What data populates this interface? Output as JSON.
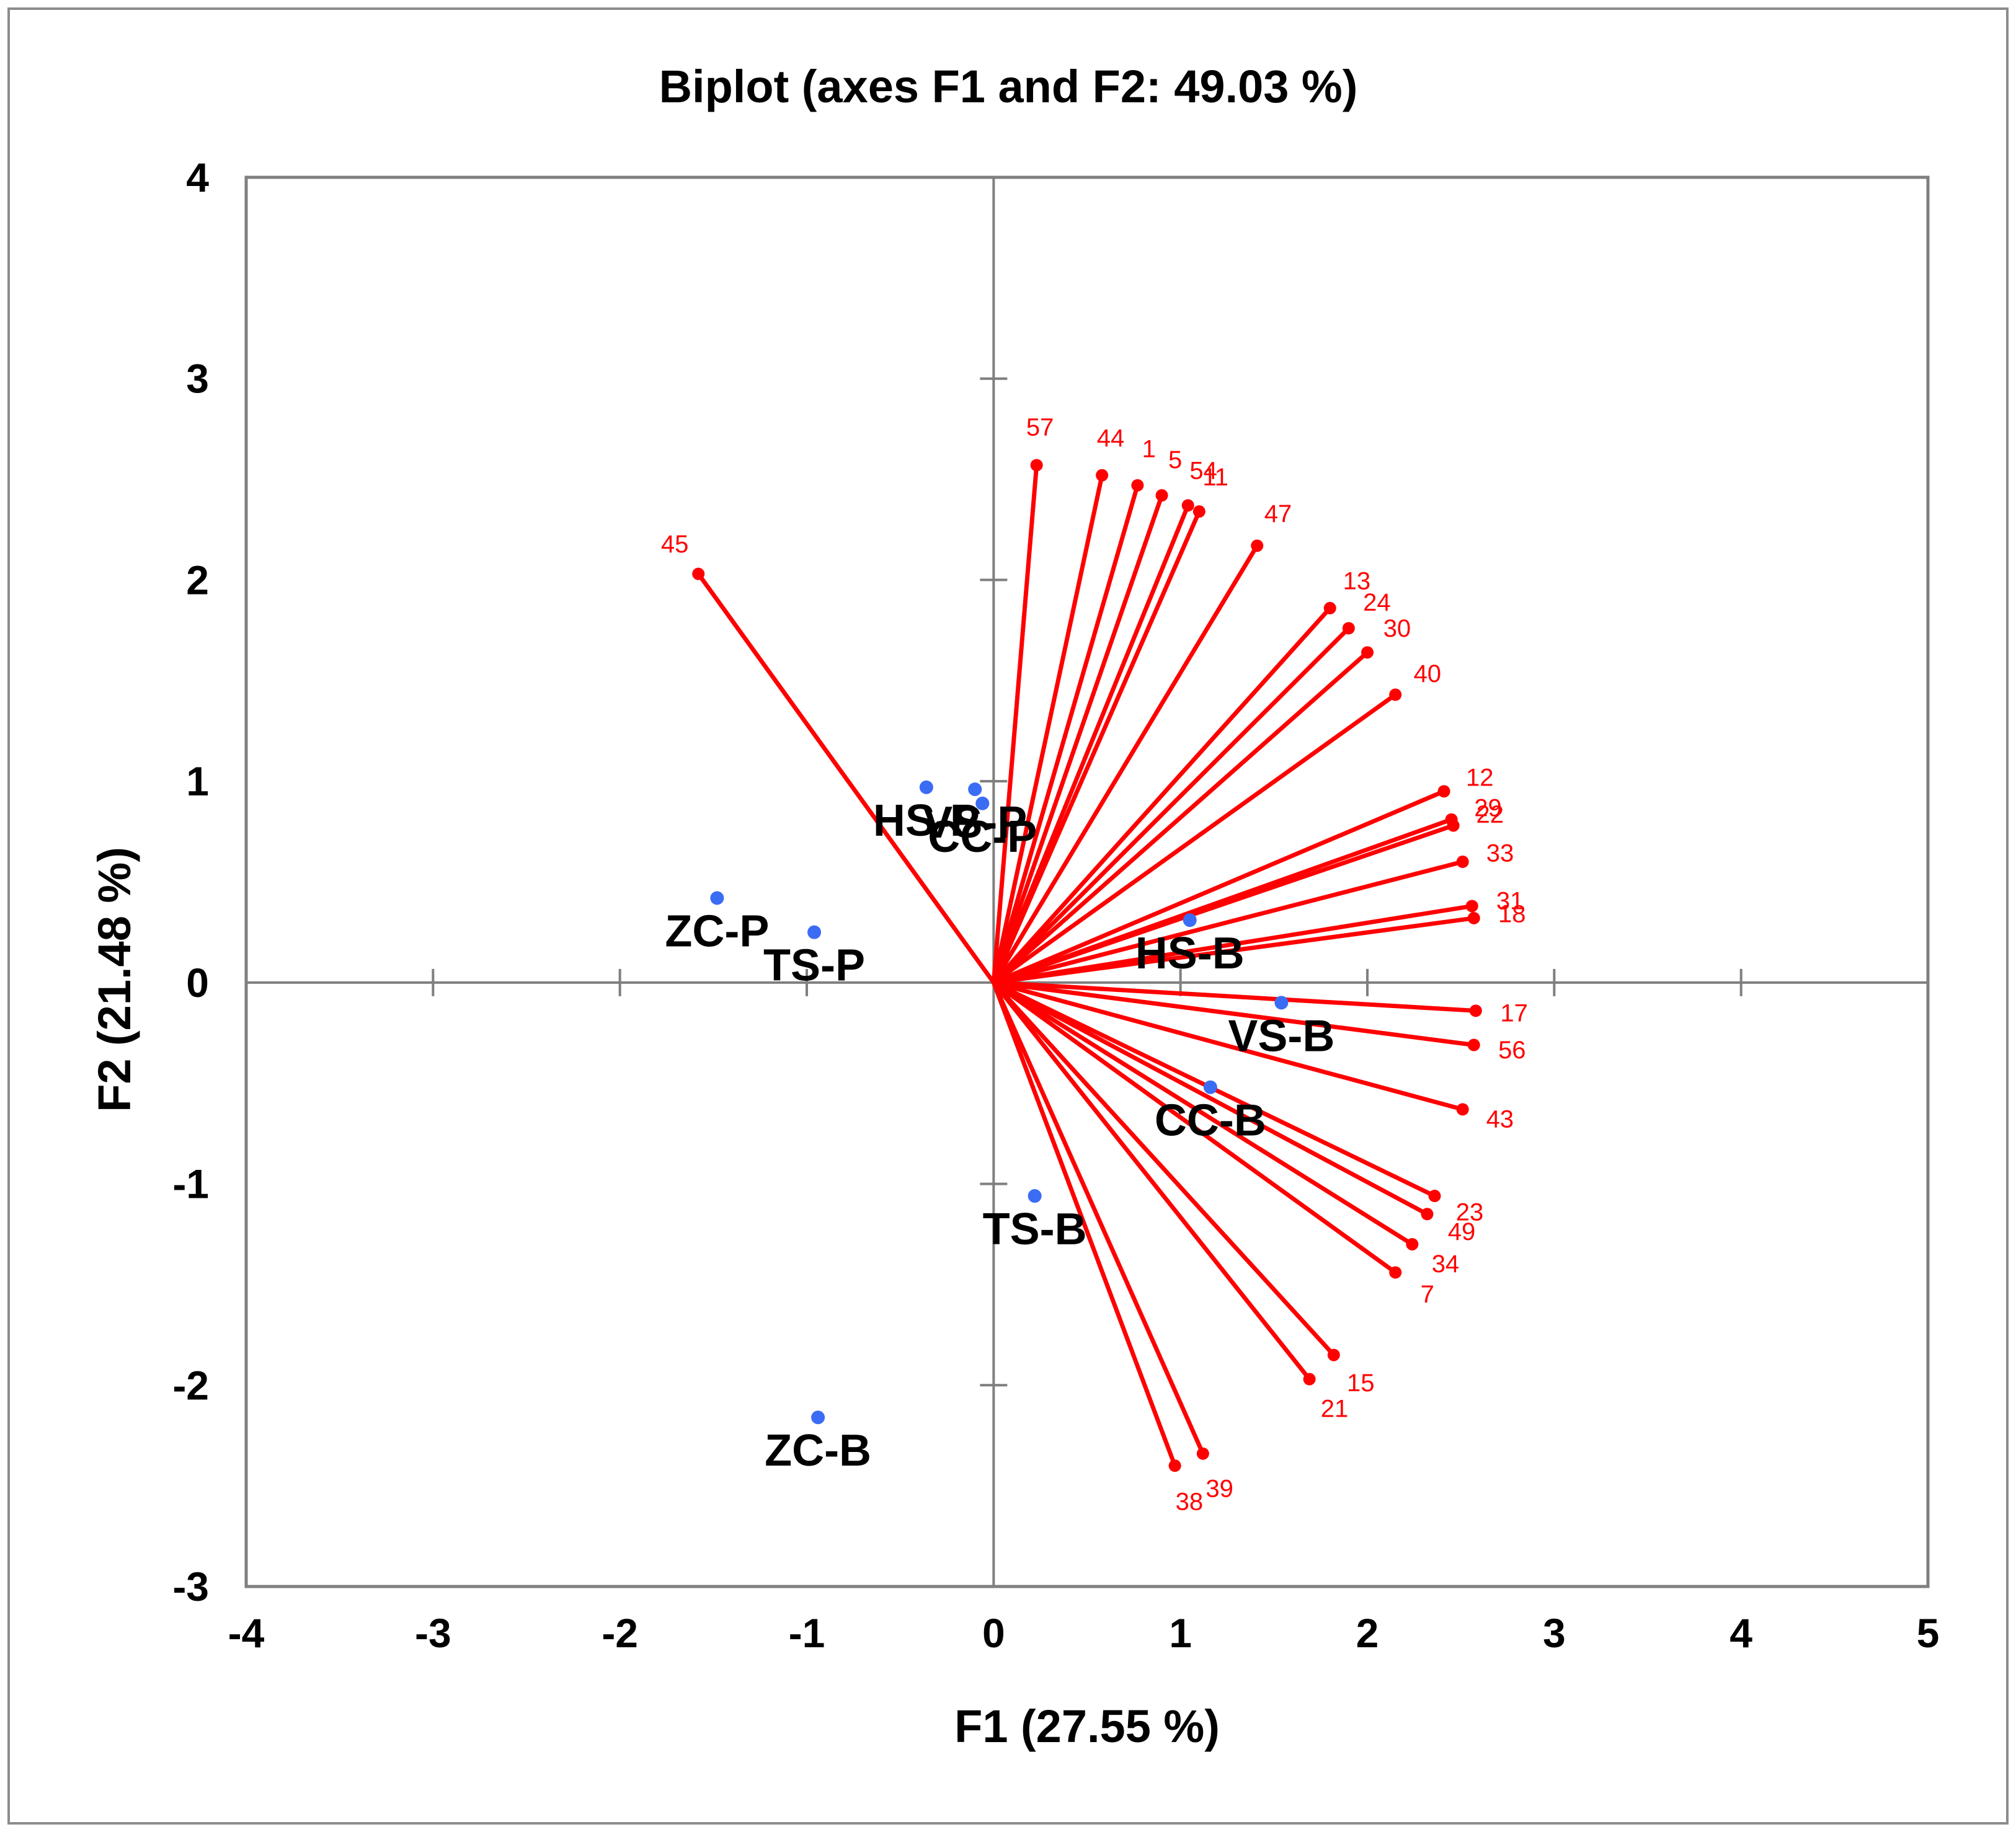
{
  "chart_data": {
    "type": "scatter",
    "title": "Biplot (axes F1 and F2: 49.03 %)",
    "xlabel": "F1 (27.55 %)",
    "ylabel": "F2 (21.48 %)",
    "xlim": [
      -4,
      5
    ],
    "ylim": [
      -3,
      4
    ],
    "x_ticks": [
      "-4",
      "-3",
      "-2",
      "-1",
      "0",
      "1",
      "2",
      "3",
      "4",
      "5"
    ],
    "y_ticks": [
      "-3",
      "-2",
      "-1",
      "0",
      "1",
      "2",
      "3",
      "4"
    ],
    "grid": false,
    "colors": {
      "variables": "#ff0000",
      "observations": "#3a6cf4",
      "axes": "#7f7f7f"
    },
    "variables": [
      {
        "label": "57",
        "x": 0.23,
        "y": 2.57
      },
      {
        "label": "44",
        "x": 0.58,
        "y": 2.52
      },
      {
        "label": "1",
        "x": 0.77,
        "y": 2.47
      },
      {
        "label": "5",
        "x": 0.9,
        "y": 2.42
      },
      {
        "label": "54",
        "x": 1.04,
        "y": 2.37
      },
      {
        "label": "11",
        "x": 1.1,
        "y": 2.34
      },
      {
        "label": "47",
        "x": 1.41,
        "y": 2.17
      },
      {
        "label": "13",
        "x": 1.8,
        "y": 1.86
      },
      {
        "label": "24",
        "x": 1.9,
        "y": 1.76
      },
      {
        "label": "30",
        "x": 2.0,
        "y": 1.64
      },
      {
        "label": "40",
        "x": 2.15,
        "y": 1.43
      },
      {
        "label": "12",
        "x": 2.41,
        "y": 0.95
      },
      {
        "label": "29",
        "x": 2.45,
        "y": 0.81
      },
      {
        "label": "22",
        "x": 2.46,
        "y": 0.78
      },
      {
        "label": "33",
        "x": 2.51,
        "y": 0.6
      },
      {
        "label": "31",
        "x": 2.56,
        "y": 0.38
      },
      {
        "label": "18",
        "x": 2.57,
        "y": 0.32
      },
      {
        "label": "17",
        "x": 2.58,
        "y": -0.14
      },
      {
        "label": "56",
        "x": 2.57,
        "y": -0.31
      },
      {
        "label": "43",
        "x": 2.51,
        "y": -0.63
      },
      {
        "label": "23",
        "x": 2.36,
        "y": -1.06
      },
      {
        "label": "49",
        "x": 2.32,
        "y": -1.15
      },
      {
        "label": "34",
        "x": 2.24,
        "y": -1.3
      },
      {
        "label": "7",
        "x": 2.15,
        "y": -1.44
      },
      {
        "label": "15",
        "x": 1.82,
        "y": -1.85
      },
      {
        "label": "21",
        "x": 1.69,
        "y": -1.97
      },
      {
        "label": "39",
        "x": 1.12,
        "y": -2.34
      },
      {
        "label": "38",
        "x": 0.97,
        "y": -2.4
      },
      {
        "label": "45",
        "x": -1.58,
        "y": 2.03
      }
    ],
    "observations": [
      {
        "label": "HS-P",
        "x": -0.36,
        "y": 0.97
      },
      {
        "label": "VS-P",
        "x": -0.1,
        "y": 0.96
      },
      {
        "label": "CC-P",
        "x": -0.06,
        "y": 0.89
      },
      {
        "label": "ZC-P",
        "x": -1.48,
        "y": 0.42
      },
      {
        "label": "TS-P",
        "x": -0.96,
        "y": 0.25
      },
      {
        "label": "HS-B",
        "x": 1.05,
        "y": 0.31
      },
      {
        "label": "VS-B",
        "x": 1.54,
        "y": -0.1
      },
      {
        "label": "CC-B",
        "x": 1.16,
        "y": -0.52
      },
      {
        "label": "TS-B",
        "x": 0.22,
        "y": -1.06
      },
      {
        "label": "ZC-B",
        "x": -0.94,
        "y": -2.16
      }
    ]
  }
}
